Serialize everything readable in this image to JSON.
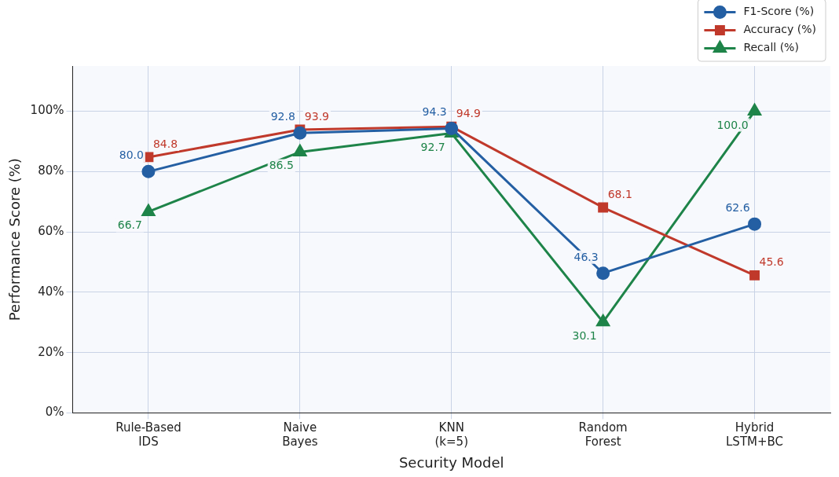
{
  "chart_data": {
    "type": "line",
    "xlabel": "Security Model",
    "ylabel": "Performance Score (%)",
    "categories": [
      "Rule-Based\nIDS",
      "Naive\nBayes",
      "KNN\n(k=5)",
      "Random\nForest",
      "Hybrid\nLSTM+BC"
    ],
    "series": [
      {
        "name": "F1-Score (%)",
        "color": "#245fa3",
        "marker": "circle",
        "values": [
          80.0,
          92.8,
          94.3,
          46.3,
          62.6
        ],
        "value_labels": [
          "80.0",
          "92.8",
          "94.3",
          "46.3",
          "62.6"
        ]
      },
      {
        "name": "Accuracy (%)",
        "color": "#c0392b",
        "marker": "square",
        "values": [
          84.8,
          93.9,
          94.9,
          68.1,
          45.6
        ],
        "value_labels": [
          "84.8",
          "93.9",
          "94.9",
          "68.1",
          "45.6"
        ]
      },
      {
        "name": "Recall (%)",
        "color": "#1e8449",
        "marker": "triangle",
        "values": [
          66.7,
          86.5,
          92.7,
          30.1,
          100.0
        ],
        "value_labels": [
          "66.7",
          "86.5",
          "92.7",
          "30.1",
          "100.0"
        ]
      }
    ],
    "ylim": [
      0,
      115
    ],
    "yticks": [
      {
        "value": 0,
        "label": "0%"
      },
      {
        "value": 20,
        "label": "20%"
      },
      {
        "value": 40,
        "label": "40%"
      },
      {
        "value": 60,
        "label": "60%"
      },
      {
        "value": 80,
        "label": "80%"
      },
      {
        "value": 100,
        "label": "100%"
      }
    ],
    "grid": true,
    "legend": "top right",
    "line_style": "solid"
  }
}
